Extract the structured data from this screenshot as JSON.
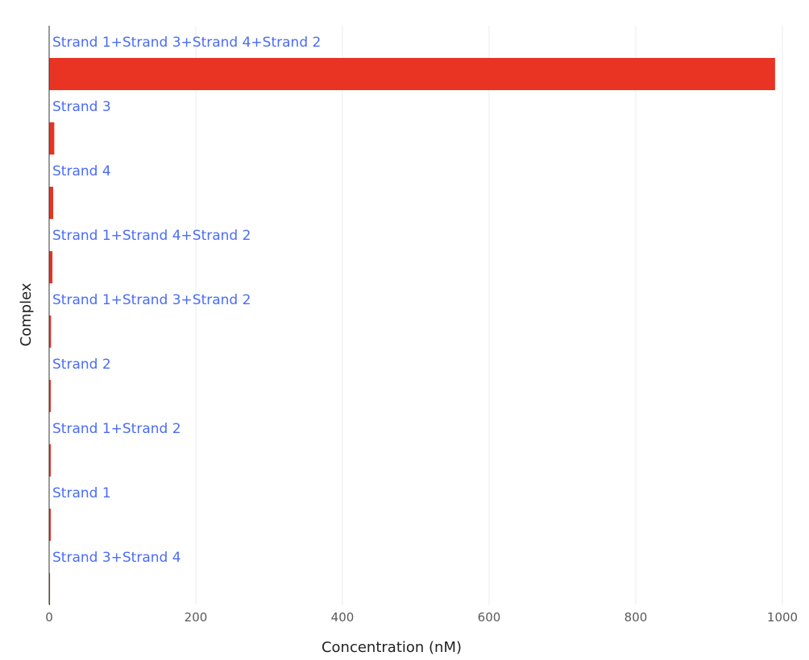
{
  "chart_data": {
    "type": "bar",
    "orientation": "horizontal",
    "categories": [
      "Strand 1+Strand 3+Strand 4+Strand 2",
      "Strand 3",
      "Strand 4",
      "Strand 1+Strand 4+Strand 2",
      "Strand 1+Strand 3+Strand 2",
      "Strand 2",
      "Strand 1+Strand 2",
      "Strand 1",
      "Strand 3+Strand 4"
    ],
    "values": [
      990,
      7,
      5.5,
      4.5,
      2.5,
      2.2,
      2.2,
      2.2,
      1.2
    ],
    "xlabel": "Concentration (nM)",
    "ylabel": "Complex",
    "xlim": [
      0,
      1000
    ],
    "xticks": [
      "0",
      "200",
      "400",
      "600",
      "800",
      "1000"
    ],
    "grid": true,
    "legend": "none",
    "colors": {
      "bar": "#e93323",
      "label": "#4a6cf7",
      "grid": "#ebebeb",
      "axis": "#333333"
    }
  }
}
